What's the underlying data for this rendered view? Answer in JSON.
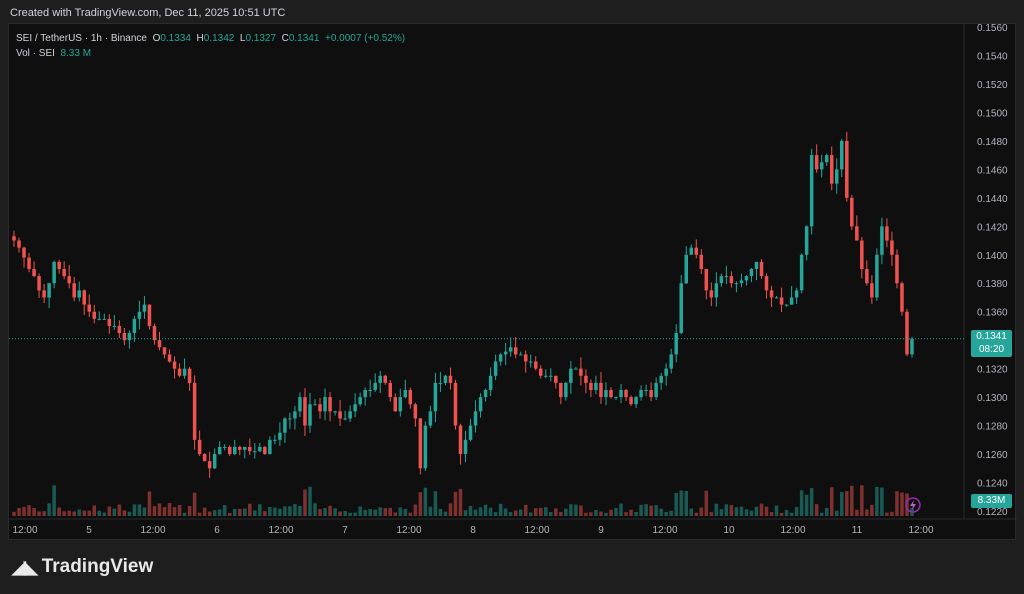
{
  "header": {
    "created": "Created with TradingView.com, Dec 11, 2025 10:51 UTC"
  },
  "legend": {
    "symbol": "SEI / TetherUS · 1h · Binance",
    "open_label": "O",
    "open": "0.1334",
    "high_label": "H",
    "high": "0.1342",
    "low_label": "L",
    "low": "0.1327",
    "close_label": "C",
    "close": "0.1341",
    "change": "+0.0007 (+0.52%)",
    "vol_label": "Vol · SEI",
    "vol_value": "8.33 M"
  },
  "price_tag": {
    "price": "0.1341",
    "countdown": "08:20"
  },
  "vol_tag": "8.33M",
  "brand": "TradingView",
  "colors": {
    "up": "#26a69a",
    "down": "#ef5350",
    "bg": "#0f0f0f"
  },
  "chart_data": {
    "type": "candlestick",
    "ylim": [
      0.122,
      0.156
    ],
    "y_ticks": [
      "0.1560",
      "0.1540",
      "0.1520",
      "0.1500",
      "0.1480",
      "0.1460",
      "0.1440",
      "0.1420",
      "0.1400",
      "0.1380",
      "0.1360",
      "0.1340",
      "0.1320",
      "0.1300",
      "0.1280",
      "0.1260",
      "0.1240",
      "0.1220"
    ],
    "x_ticks": [
      "12:00",
      "5",
      "12:00",
      "6",
      "12:00",
      "7",
      "12:00",
      "8",
      "12:00",
      "9",
      "12:00",
      "10",
      "12:00",
      "11",
      "12:00"
    ],
    "last_price": 0.1341,
    "series": [
      {
        "name": "price",
        "close": [
          0.141,
          0.1405,
          0.1398,
          0.139,
          0.1385,
          0.1375,
          0.137,
          0.138,
          0.1395,
          0.139,
          0.1385,
          0.138,
          0.137,
          0.1375,
          0.1365,
          0.136,
          0.1355,
          0.1355,
          0.1355,
          0.135,
          0.135,
          0.1345,
          0.134,
          0.1345,
          0.1355,
          0.136,
          0.1365,
          0.135,
          0.134,
          0.1335,
          0.133,
          0.1325,
          0.132,
          0.1315,
          0.132,
          0.131,
          0.127,
          0.126,
          0.1255,
          0.125,
          0.126,
          0.1265,
          0.1265,
          0.126,
          0.1265,
          0.1263,
          0.1265,
          0.1262,
          0.1262,
          0.1265,
          0.126,
          0.127,
          0.127,
          0.1275,
          0.1285,
          0.1285,
          0.129,
          0.13,
          0.128,
          0.1295,
          0.1295,
          0.129,
          0.13,
          0.129,
          0.129,
          0.1285,
          0.1285,
          0.129,
          0.1295,
          0.13,
          0.1305,
          0.1305,
          0.131,
          0.1315,
          0.131,
          0.13,
          0.129,
          0.13,
          0.1305,
          0.1295,
          0.1285,
          0.125,
          0.128,
          0.129,
          0.131,
          0.131,
          0.1315,
          0.131,
          0.128,
          0.126,
          0.127,
          0.128,
          0.129,
          0.13,
          0.1305,
          0.1315,
          0.1325,
          0.133,
          0.1332,
          0.1335,
          0.133,
          0.133,
          0.1325,
          0.1325,
          0.132,
          0.1315,
          0.1315,
          0.1315,
          0.131,
          0.13,
          0.131,
          0.132,
          0.132,
          0.1315,
          0.131,
          0.1305,
          0.131,
          0.13,
          0.1305,
          0.13,
          0.13,
          0.1305,
          0.13,
          0.1295,
          0.13,
          0.1305,
          0.1305,
          0.13,
          0.131,
          0.1315,
          0.132,
          0.133,
          0.1345,
          0.138,
          0.14,
          0.1405,
          0.14,
          0.139,
          0.1375,
          0.137,
          0.138,
          0.1385,
          0.1385,
          0.138,
          0.138,
          0.1382,
          0.1385,
          0.139,
          0.1395,
          0.1385,
          0.1375,
          0.137,
          0.137,
          0.1365,
          0.1365,
          0.137,
          0.1375,
          0.14,
          0.142,
          0.147,
          0.146,
          0.1465,
          0.147,
          0.145,
          0.146,
          0.148,
          0.144,
          0.142,
          0.141,
          0.139,
          0.138,
          0.137,
          0.14,
          0.142,
          0.141,
          0.14,
          0.138,
          0.136,
          0.133,
          0.1341
        ]
      }
    ]
  }
}
